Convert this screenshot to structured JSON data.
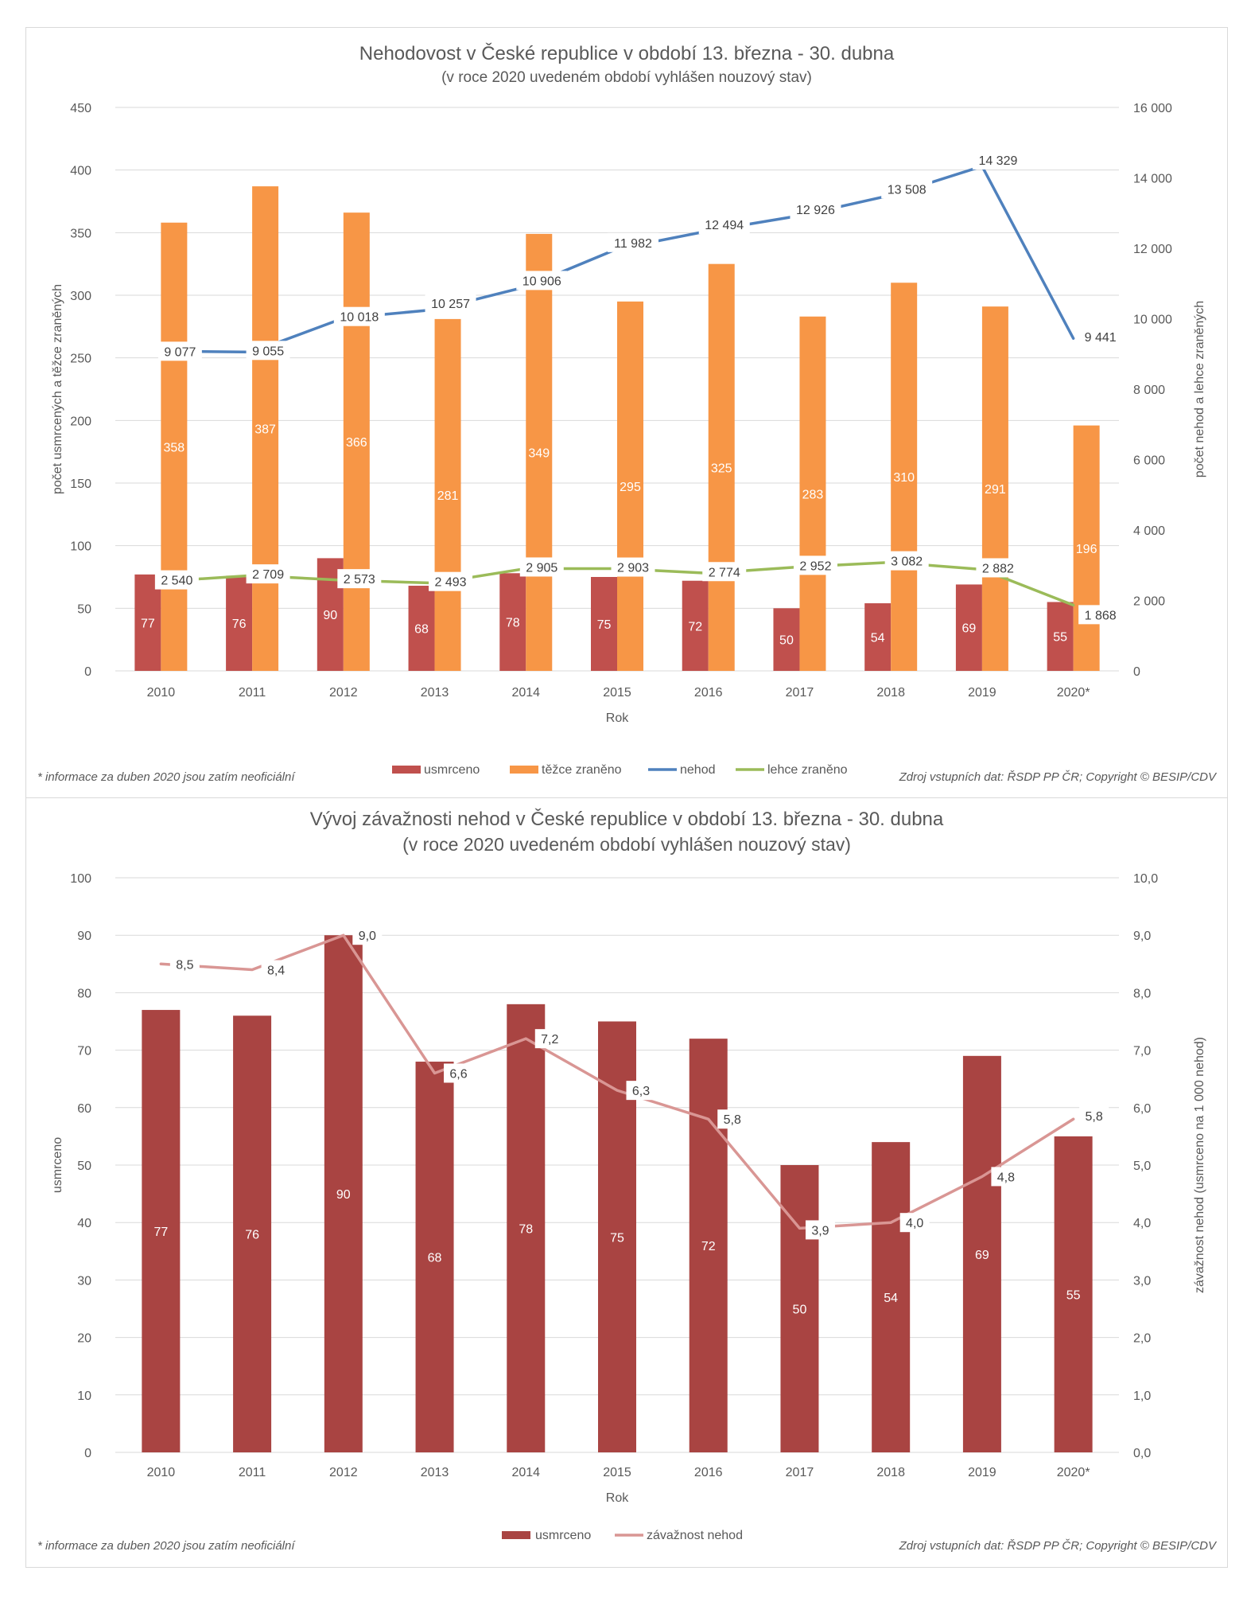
{
  "colors": {
    "usmrceno": "#c0504d",
    "tezce": "#f79646",
    "nehod": "#4f81bd",
    "lehce": "#9bbb59",
    "bar2": "#a94442",
    "zavaznost": "#d99694",
    "grid": "#d9d9d9",
    "text": "#595959"
  },
  "chart_data": [
    {
      "type": "bar",
      "title": "Nehodovost v České republice v období 13. března - 30. dubna",
      "subtitle": "(v roce 2020 uvedeném období  vyhlášen nouzový  stav)",
      "categories": [
        "2010",
        "2011",
        "2012",
        "2013",
        "2014",
        "2015",
        "2016",
        "2017",
        "2018",
        "2019",
        "2020*"
      ],
      "xlabel": "Rok",
      "ylabel": "počet usmrcených a těžce zraněných",
      "ylabel_right": "počet nehod a lehce zraněných",
      "ylim": [
        0,
        450
      ],
      "yticks": [
        "0",
        "50",
        "100",
        "150",
        "200",
        "250",
        "300",
        "350",
        "400",
        "450"
      ],
      "ylim_right": [
        0,
        16000
      ],
      "yticks_right": [
        "0",
        "2 000",
        "4 000",
        "6 000",
        "8 000",
        "10 000",
        "12 000",
        "14 000",
        "16 000"
      ],
      "series": [
        {
          "name": "usmrceno",
          "type": "bar",
          "axis": "left",
          "values": [
            77,
            76,
            90,
            68,
            78,
            75,
            72,
            50,
            54,
            69,
            55
          ]
        },
        {
          "name": "těžce zraněno",
          "type": "bar",
          "axis": "left",
          "values": [
            358,
            387,
            366,
            281,
            349,
            295,
            325,
            283,
            310,
            291,
            196
          ]
        },
        {
          "name": "nehod",
          "type": "line",
          "axis": "right",
          "values": [
            9077,
            9055,
            10018,
            10257,
            10906,
            11982,
            12494,
            12926,
            13508,
            14329,
            9441
          ],
          "labels": [
            "9 077",
            "9 055",
            "10 018",
            "10 257",
            "10 906",
            "11 982",
            "12 494",
            "12 926",
            "13 508",
            "14 329",
            "9 441"
          ]
        },
        {
          "name": "lehce zraněno",
          "type": "line",
          "axis": "right",
          "values": [
            2540,
            2709,
            2573,
            2493,
            2905,
            2903,
            2774,
            2952,
            3082,
            2882,
            1868
          ],
          "labels": [
            "2 540",
            "2 709",
            "2 573",
            "2 493",
            "2 905",
            "2 903",
            "2 774",
            "2 952",
            "3 082",
            "2 882",
            "1 868"
          ]
        }
      ],
      "legend": [
        "usmrceno",
        "těžce zraněno",
        "nehod",
        "lehce zraněno"
      ],
      "footnote": "* informace za duben 2020 jsou zatím neoficiální",
      "source": "Zdroj vstupních dat: ŘSDP PP ČR; Copyright © BESIP/CDV"
    },
    {
      "type": "bar",
      "title": "Vývoj závažnosti nehod v České republice v období 13. března - 30. dubna",
      "subtitle": "(v roce 2020 uvedeném období vyhlášen nouzový stav)",
      "categories": [
        "2010",
        "2011",
        "2012",
        "2013",
        "2014",
        "2015",
        "2016",
        "2017",
        "2018",
        "2019",
        "2020*"
      ],
      "xlabel": "Rok",
      "ylabel": "usmrceno",
      "ylabel_right": "závažnost nehod (usmrceno na 1 000 nehod)",
      "ylim": [
        0,
        100
      ],
      "yticks": [
        "0",
        "10",
        "20",
        "30",
        "40",
        "50",
        "60",
        "70",
        "80",
        "90",
        "100"
      ],
      "ylim_right": [
        0,
        10
      ],
      "yticks_right": [
        "0,0",
        "1,0",
        "2,0",
        "3,0",
        "4,0",
        "5,0",
        "6,0",
        "7,0",
        "8,0",
        "9,0",
        "10,0"
      ],
      "series": [
        {
          "name": "usmrceno",
          "type": "bar",
          "axis": "left",
          "values": [
            77,
            76,
            90,
            68,
            78,
            75,
            72,
            50,
            54,
            69,
            55
          ]
        },
        {
          "name": "závažnost nehod",
          "type": "line",
          "axis": "right",
          "values": [
            8.5,
            8.4,
            9.0,
            6.6,
            7.2,
            6.3,
            5.8,
            3.9,
            4.0,
            4.8,
            5.8
          ],
          "labels": [
            "8,5",
            "8,4",
            "9,0",
            "6,6",
            "7,2",
            "6,3",
            "5,8",
            "3,9",
            "4,0",
            "4,8",
            "5,8"
          ]
        }
      ],
      "legend": [
        "usmrceno",
        "závažnost nehod"
      ],
      "footnote": "* informace za duben 2020 jsou zatím neoficiální",
      "source": "Zdroj vstupních dat: ŘSDP PP ČR; Copyright © BESIP/CDV"
    }
  ]
}
